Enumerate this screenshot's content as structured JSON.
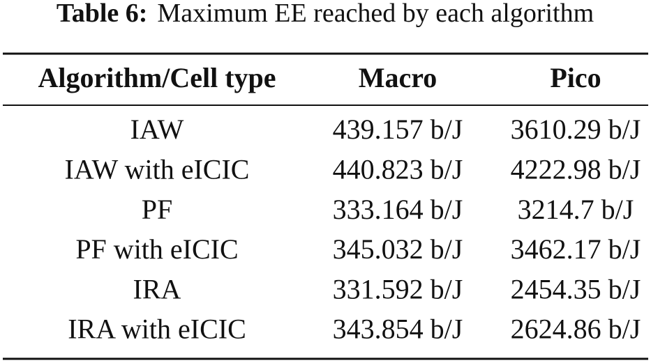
{
  "caption": {
    "label": "Table 6:",
    "text": "Maximum EE reached by each algorithm"
  },
  "table": {
    "header": [
      "Algorithm/Cell type",
      "Macro",
      "Pico"
    ],
    "rows": [
      [
        "IAW",
        "439.157 b/J",
        "3610.29 b/J"
      ],
      [
        "IAW with eICIC",
        "440.823 b/J",
        "4222.98 b/J"
      ],
      [
        "PF",
        "333.164 b/J",
        "3214.7 b/J"
      ],
      [
        "PF with eICIC",
        "345.032 b/J",
        "3462.17 b/J"
      ],
      [
        "IRA",
        "331.592 b/J",
        "2454.35 b/J"
      ],
      [
        "IRA with eICIC",
        "343.854 b/J",
        "2624.86 b/J"
      ]
    ]
  }
}
